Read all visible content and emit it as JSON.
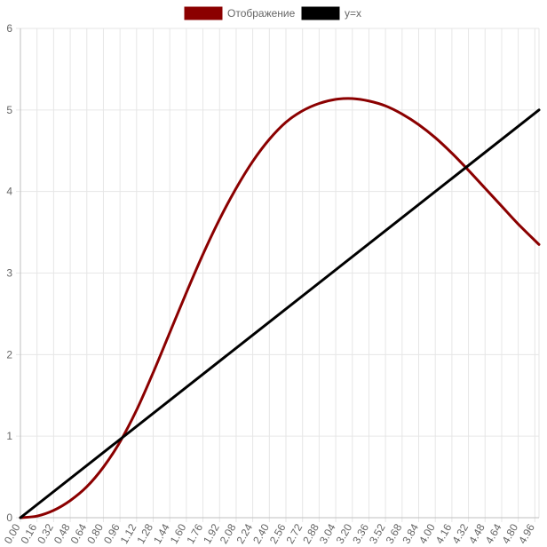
{
  "chart_data": {
    "type": "line",
    "title": "",
    "xlabel": "",
    "ylabel": "",
    "ylim": [
      0,
      6
    ],
    "xlim": [
      0,
      5
    ],
    "grid": true,
    "legend_position": "top-center",
    "y_ticks": [
      "0",
      "1",
      "2",
      "3",
      "4",
      "5",
      "6"
    ],
    "x_tick_step": 0.16,
    "x_tick_count": 32,
    "x_ticks": [
      "0.00",
      "0.16",
      "0.32",
      "0.48",
      "0.64",
      "0.80",
      "0.96",
      "1.12",
      "1.28",
      "1.44",
      "1.60",
      "1.76",
      "1.92",
      "2.08",
      "2.24",
      "2.40",
      "2.56",
      "2.72",
      "2.88",
      "3.04",
      "3.20",
      "3.36",
      "3.52",
      "3.68",
      "3.84",
      "4.00",
      "4.16",
      "4.32",
      "4.48",
      "4.64",
      "4.80",
      "4.96"
    ],
    "series": [
      {
        "name": "Отображение",
        "color": "#8b0000",
        "x": [
          0,
          0.16,
          0.32,
          0.48,
          0.64,
          0.8,
          0.96,
          1.12,
          1.28,
          1.44,
          1.6,
          1.76,
          1.92,
          2.08,
          2.24,
          2.4,
          2.56,
          2.72,
          2.88,
          3.04,
          3.2,
          3.36,
          3.52,
          3.68,
          3.84,
          4.0,
          4.16,
          4.32,
          4.48,
          4.64,
          4.8,
          5.0
        ],
        "values": [
          0.0,
          0.02,
          0.09,
          0.21,
          0.38,
          0.62,
          0.93,
          1.32,
          1.78,
          2.27,
          2.76,
          3.23,
          3.66,
          4.04,
          4.37,
          4.64,
          4.85,
          4.99,
          5.08,
          5.13,
          5.14,
          5.11,
          5.05,
          4.95,
          4.82,
          4.66,
          4.47,
          4.26,
          4.04,
          3.82,
          3.6,
          3.35
        ]
      },
      {
        "name": "y=x",
        "color": "#000000",
        "x": [
          0,
          5
        ],
        "values": [
          0,
          5
        ]
      }
    ]
  }
}
